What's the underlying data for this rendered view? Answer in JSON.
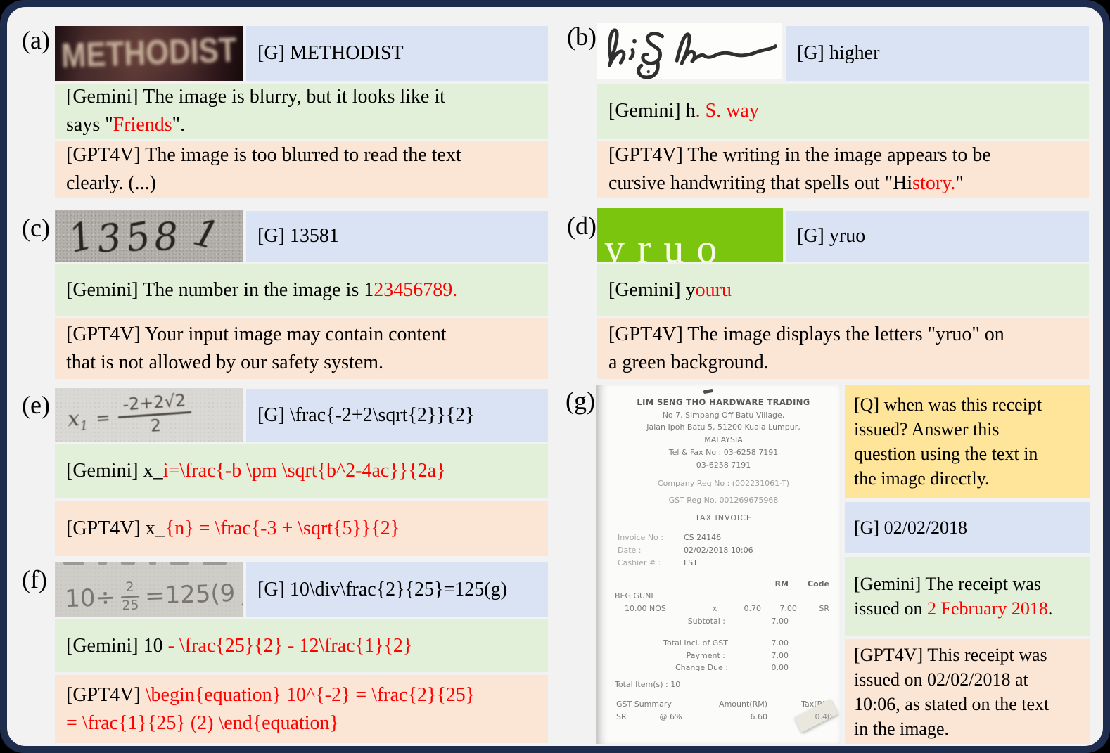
{
  "figure": {
    "description_note": "",
    "colors": {
      "frame": "#1e2c4e",
      "background": "#f2f2f3",
      "ground_truth_box": "#dae3f3",
      "gemini_box": "#e2efd9",
      "gpt4v_box": "#fbe5d5",
      "question_box": "#ffe599",
      "error_text": "#fe0000",
      "yruo_background": "#7cc50e"
    }
  },
  "panels": {
    "a": {
      "label": "(a)",
      "image_text": "METHODIST",
      "gt": "[G] METHODIST",
      "gemini": [
        {
          "t": "[Gemini] The image is blurry, but it looks like it"
        },
        {
          "br": true
        },
        {
          "t": "says \""
        },
        {
          "t": "Friends",
          "c": "r"
        },
        {
          "t": "\"."
        }
      ],
      "gpt": [
        {
          "t": "[GPT4V] The image is too blurred to read the text"
        },
        {
          "br": true
        },
        {
          "t": "clearly. (...)"
        }
      ]
    },
    "b": {
      "label": "(b)",
      "image_text": "higher",
      "gt": "[G] higher",
      "gemini": [
        {
          "t": "[Gemini] h"
        },
        {
          "t": ". S. way",
          "c": "r"
        }
      ],
      "gpt": [
        {
          "t": "[GPT4V] The writing in the image appears to be"
        },
        {
          "br": true
        },
        {
          "t": "cursive handwriting that spells out \"Hi"
        },
        {
          "t": "story.",
          "c": "r"
        },
        {
          "t": "\""
        }
      ]
    },
    "c": {
      "label": "(c)",
      "image_text": "13581",
      "gt": "[G] 13581",
      "gemini": [
        {
          "t": "[Gemini] The number in the image is 1"
        },
        {
          "t": "23456789.",
          "c": "r"
        }
      ],
      "gpt": [
        {
          "t": "[GPT4V] Your input image may contain content"
        },
        {
          "br": true
        },
        {
          "t": "that is not allowed by our safety system."
        }
      ]
    },
    "d": {
      "label": "(d)",
      "image_text": "yruo",
      "gt": "[G] yruo",
      "gemini": [
        {
          "t": "[Gemini] y"
        },
        {
          "t": "ouru",
          "c": "r"
        }
      ],
      "gpt": [
        {
          "t": "[GPT4V] The image displays the letters \"yruo\" on"
        },
        {
          "br": true
        },
        {
          "t": "a green background."
        }
      ]
    },
    "e": {
      "label": "(e)",
      "image_math": {
        "lhs": "x",
        "sub": "1",
        "eq": "=",
        "num": "-2+2√2",
        "den": "2"
      },
      "gt": "[G] \\frac{-2+2\\sqrt{2}}{2}",
      "gemini": [
        {
          "t": "[Gemini] x_"
        },
        {
          "t": "i=\\frac{-b \\pm \\sqrt{b^2-4ac}}{2a}",
          "c": "r"
        }
      ],
      "gpt": [
        {
          "t": "[GPT4V] x_"
        },
        {
          "t": "{n} = \\frac{-3 + \\sqrt{5}}{2}",
          "c": "r"
        }
      ]
    },
    "f": {
      "label": "(f)",
      "image_math": {
        "pre": "10÷",
        "num": "2",
        "den": "25",
        "post": "=125(9",
        "tail": ")"
      },
      "gt": "[G] 10\\div\\frac{2}{25}=125(g)",
      "gemini": [
        {
          "t": "[Gemini] 10 "
        },
        {
          "t": "- \\frac{25}{2} - 12\\frac{1}{2}",
          "c": "r"
        }
      ],
      "gpt": [
        {
          "t": "[GPT4V] "
        },
        {
          "t": "\\begin{equation} 10^{-2} = \\frac{2}{25}",
          "c": "r"
        },
        {
          "br": true
        },
        {
          "t": "= \\frac{1}{25} (2) \\end{equation}",
          "c": "r"
        }
      ]
    },
    "g": {
      "label": "(g)",
      "question": [
        {
          "t": "[Q] when was this receipt"
        },
        {
          "br": true
        },
        {
          "t": "issued? Answer this"
        },
        {
          "br": true
        },
        {
          "t": "question using the text in"
        },
        {
          "br": true
        },
        {
          "t": "the image directly."
        }
      ],
      "gt": "[G] 02/02/2018",
      "gemini": [
        {
          "t": "[Gemini] The receipt was"
        },
        {
          "br": true
        },
        {
          "t": "issued on "
        },
        {
          "t": "2 February 2018",
          "c": "r"
        },
        {
          "t": "."
        }
      ],
      "gpt": [
        {
          "t": "[GPT4V] This receipt was"
        },
        {
          "br": true
        },
        {
          "t": "issued on 02/02/2018 at"
        },
        {
          "br": true
        },
        {
          "t": "10:06, as stated on the text"
        },
        {
          "br": true
        },
        {
          "t": "in the image."
        }
      ]
    }
  },
  "receipt": {
    "store": "LIM SENG THO HARDWARE TRADING",
    "addr1": "No 7, Simpang Off Batu Village,",
    "addr2": "Jalan Ipoh Batu 5, 51200 Kuala Lumpur,",
    "country": "MALAYSIA",
    "tel": "Tel & Fax No : 03-6258 7191",
    "tel2": "03-6258 7191",
    "reg": "Company Reg No : (002231061-T)",
    "gst_reg": "GST Reg No. 001269675968",
    "doc_type": "TAX INVOICE",
    "invoice_label": "Invoice No :",
    "invoice_value": "CS 24146",
    "date_label": "Date :",
    "date_value": "02/02/2018 10:06",
    "cashier_label": "Cashier # :",
    "cashier_value": "LST",
    "col_rm": "RM",
    "col_code": "Code",
    "item_name": "BEG GUNI",
    "item_qty": "10.00 NOS",
    "item_x": "x",
    "item_price": "0.70",
    "item_amount": "7.00",
    "item_code": "SR",
    "subtotal_label": "Subtotal :",
    "subtotal_value": "7.00",
    "total_label": "Total Incl. of GST",
    "total_value": "7.00",
    "payment_label": "Payment :",
    "payment_value": "7.00",
    "change_label": "Change Due :",
    "change_value": "0.00",
    "total_items": "Total Item(s) : 10",
    "gst_summary": "GST Summary",
    "gst_amount": "Amount(RM)",
    "gst_tax": "Tax(RM)",
    "gst_sr": "SR",
    "gst_rate": "@ 6%",
    "gst_amount_value": "6.60",
    "gst_tax_value": "0.40"
  }
}
